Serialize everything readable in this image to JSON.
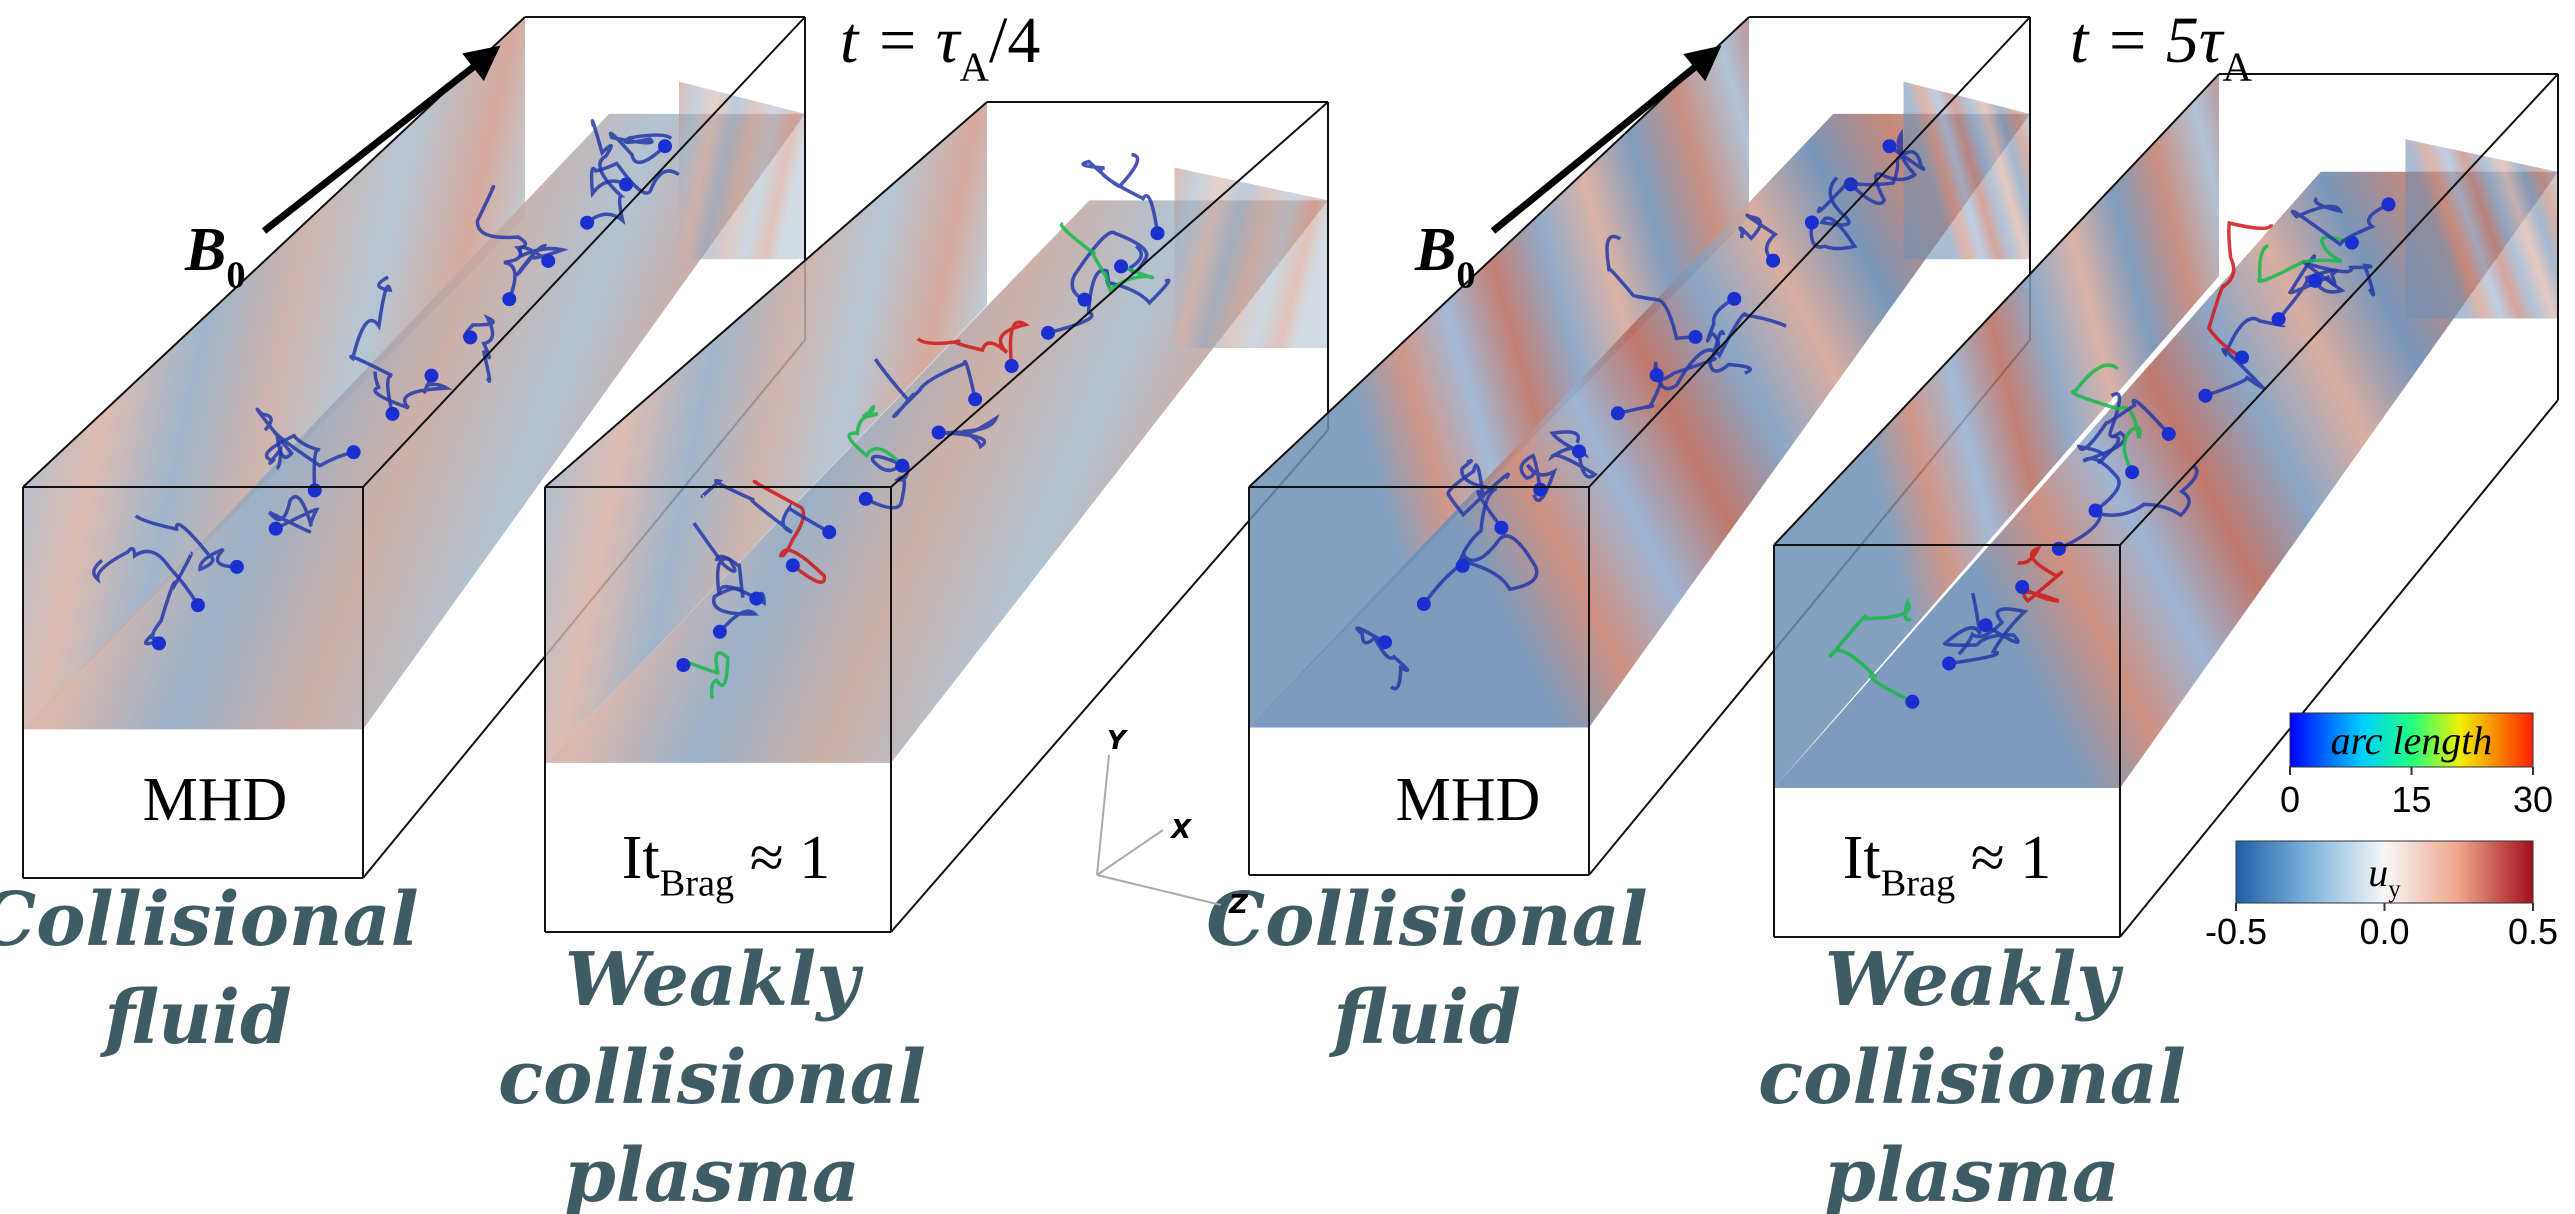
{
  "snapshots": [
    {
      "time": [
        "t = τ",
        "A",
        "/4"
      ],
      "panels": [
        {
          "field": [
            "B",
            "0"
          ],
          "box_label": [
            "MHD"
          ],
          "caption": [
            "Collisional",
            "fluid"
          ]
        },
        {
          "box_label": [
            "It",
            "Brag",
            " ≈ 1"
          ],
          "caption": [
            "Weakly",
            "collisional",
            "plasma"
          ]
        }
      ]
    },
    {
      "time": [
        "t = 5τ",
        "A"
      ],
      "panels": [
        {
          "field": [
            "B",
            "0"
          ],
          "box_label": [
            "MHD"
          ],
          "caption": [
            "Collisional",
            "fluid"
          ]
        },
        {
          "box_label": [
            "It",
            "Brag",
            " ≈ 1"
          ],
          "caption": [
            "Weakly",
            "collisional",
            "plasma"
          ]
        }
      ]
    }
  ],
  "axes": [
    "Y",
    "X",
    "Z"
  ],
  "colorbars": [
    {
      "title": [
        "arc length"
      ],
      "ticks": [
        "0",
        "15",
        "30"
      ]
    },
    {
      "title": [
        "u",
        "y"
      ],
      "ticks": [
        "-0.5",
        "0.0",
        "0.5"
      ]
    }
  ]
}
